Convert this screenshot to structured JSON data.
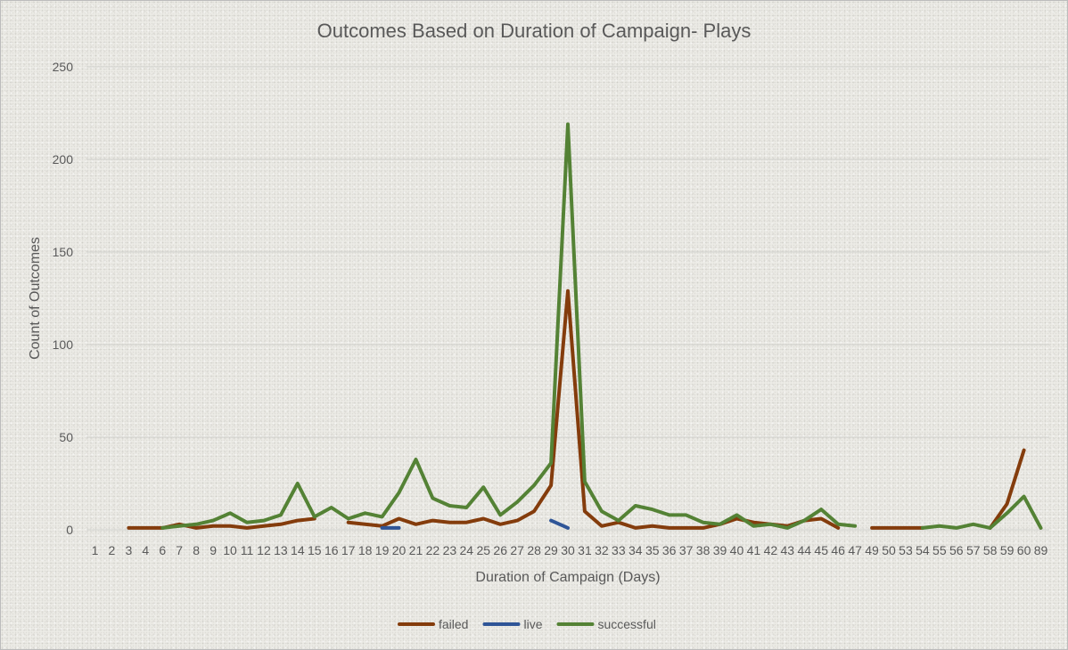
{
  "chart_data": {
    "type": "line",
    "title": "Outcomes Based on Duration of Campaign- Plays",
    "xlabel": "Duration of Campaign (Days)",
    "ylabel": "Count of Outcomes",
    "ylim": [
      0,
      250
    ],
    "yticks": [
      0,
      50,
      100,
      150,
      200,
      250
    ],
    "grid": true,
    "legend_position": "bottom",
    "categories": [
      "1",
      "2",
      "3",
      "4",
      "6",
      "7",
      "8",
      "9",
      "10",
      "11",
      "12",
      "13",
      "14",
      "15",
      "16",
      "17",
      "18",
      "19",
      "20",
      "21",
      "22",
      "23",
      "24",
      "25",
      "26",
      "27",
      "28",
      "29",
      "30",
      "31",
      "32",
      "33",
      "34",
      "35",
      "36",
      "37",
      "38",
      "39",
      "40",
      "41",
      "42",
      "43",
      "44",
      "45",
      "46",
      "47",
      "49",
      "50",
      "53",
      "54",
      "55",
      "56",
      "57",
      "58",
      "59",
      "60",
      "89"
    ],
    "series": [
      {
        "name": "failed",
        "color": "#843c0c",
        "values": [
          null,
          null,
          1,
          1,
          1,
          3,
          1,
          2,
          2,
          1,
          2,
          3,
          5,
          6,
          null,
          4,
          3,
          2,
          6,
          3,
          5,
          4,
          4,
          6,
          3,
          5,
          10,
          24,
          129,
          10,
          2,
          4,
          1,
          2,
          1,
          1,
          1,
          3,
          6,
          4,
          3,
          2,
          5,
          6,
          1,
          null,
          1,
          1,
          1,
          1,
          null,
          null,
          null,
          1,
          14,
          43,
          null
        ]
      },
      {
        "name": "live",
        "color": "#2f5597",
        "values": [
          null,
          null,
          null,
          null,
          null,
          null,
          null,
          null,
          null,
          null,
          null,
          null,
          null,
          null,
          null,
          null,
          null,
          1,
          1,
          null,
          null,
          null,
          null,
          null,
          null,
          null,
          null,
          5,
          1,
          null,
          null,
          null,
          null,
          null,
          null,
          null,
          null,
          null,
          null,
          null,
          null,
          null,
          null,
          null,
          null,
          null,
          null,
          null,
          null,
          null,
          null,
          null,
          null,
          null,
          null,
          null,
          null
        ]
      },
      {
        "name": "successful",
        "color": "#548235",
        "values": [
          null,
          null,
          null,
          null,
          1,
          2,
          3,
          5,
          9,
          4,
          5,
          8,
          25,
          7,
          12,
          6,
          9,
          7,
          20,
          38,
          17,
          13,
          12,
          23,
          8,
          15,
          24,
          36,
          219,
          26,
          10,
          5,
          13,
          11,
          8,
          8,
          4,
          3,
          8,
          2,
          3,
          1,
          5,
          11,
          3,
          2,
          null,
          null,
          null,
          1,
          2,
          1,
          3,
          1,
          9,
          18,
          1
        ]
      }
    ]
  }
}
